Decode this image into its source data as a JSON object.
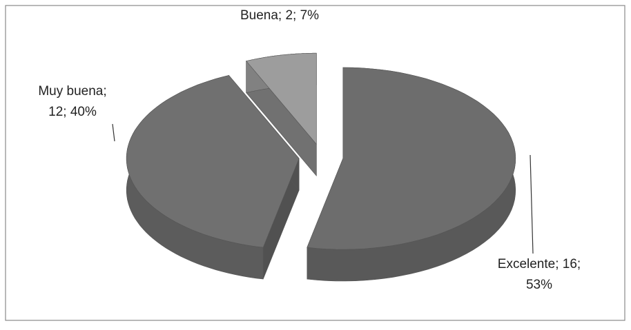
{
  "chart_data": {
    "type": "pie3d",
    "values": [
      16,
      12,
      2
    ],
    "value_labels": [
      [
        "Excelente; 16;",
        "53%"
      ],
      [
        "Muy buena;",
        "12; 40%"
      ],
      [
        "Buena; 2; 7%"
      ]
    ],
    "colors": [
      "#6d6d6d",
      "#707070",
      "#9d9d9d"
    ],
    "exploded": true
  }
}
